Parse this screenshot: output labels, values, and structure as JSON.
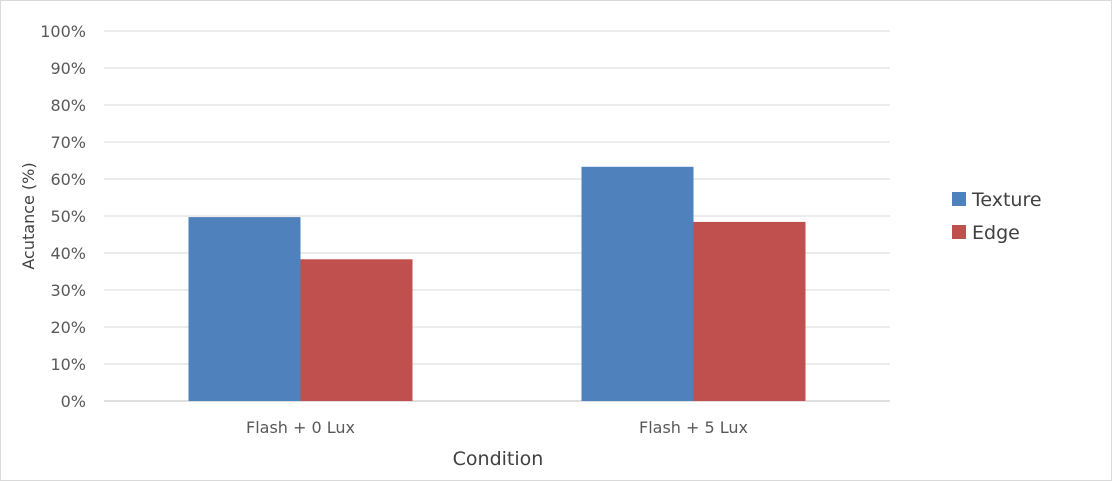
{
  "chart_data": {
    "type": "bar",
    "title": "",
    "xlabel": "Condition",
    "ylabel": "Acutance (%)",
    "categories": [
      "Flash + 0 Lux",
      "Flash + 5 Lux"
    ],
    "series": [
      {
        "name": "Texture",
        "values": [
          49.7,
          63.3
        ],
        "color": "#4f81bd"
      },
      {
        "name": "Edge",
        "values": [
          38.3,
          48.4
        ],
        "color": "#c0504d"
      }
    ],
    "ylim": [
      0,
      100
    ],
    "yticks": [
      "0%",
      "10%",
      "20%",
      "30%",
      "40%",
      "50%",
      "60%",
      "70%",
      "80%",
      "90%",
      "100%"
    ],
    "grid": true,
    "legend": "right"
  }
}
